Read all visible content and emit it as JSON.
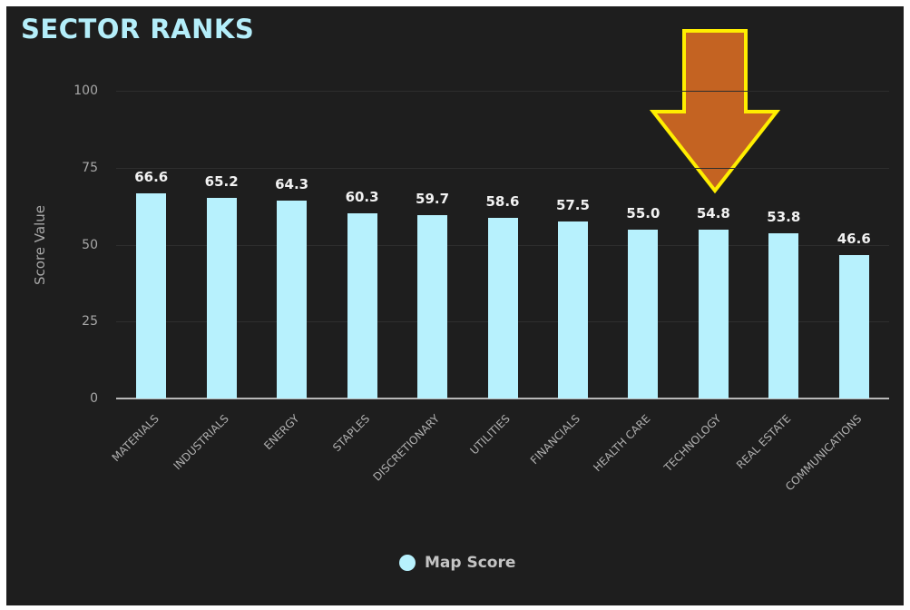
{
  "header": {
    "title": "SECTOR RANKS"
  },
  "legend": {
    "label": "Map Score",
    "color": "#b7f1fd"
  },
  "annotation": {
    "type": "down-arrow",
    "target": "TECHNOLOGY",
    "fill": "#c46322",
    "stroke": "#ffee00"
  },
  "chart_data": {
    "type": "bar",
    "title": "SECTOR RANKS",
    "xlabel": "",
    "ylabel": "Score Value",
    "ylim": [
      0,
      100
    ],
    "yticks": [
      0,
      25,
      50,
      75,
      100
    ],
    "grid": true,
    "legend_position": "bottom",
    "categories": [
      "MATERIALS",
      "INDUSTRIALS",
      "ENERGY",
      "STAPLES",
      "DISCRETIONARY",
      "UTILITIES",
      "FINANCIALS",
      "HEALTH CARE",
      "TECHNOLOGY",
      "REAL ESTATE",
      "COMMUNICATIONS"
    ],
    "series": [
      {
        "name": "Map Score",
        "color": "#b7f1fd",
        "values": [
          66.6,
          65.2,
          64.3,
          60.3,
          59.7,
          58.6,
          57.5,
          55.0,
          54.8,
          53.8,
          46.6
        ]
      }
    ],
    "value_labels": [
      "66.6",
      "65.2",
      "64.3",
      "60.3",
      "59.7",
      "58.6",
      "57.5",
      "55.0",
      "54.8",
      "53.8",
      "46.6"
    ]
  }
}
